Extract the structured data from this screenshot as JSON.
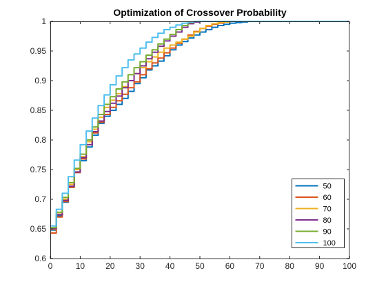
{
  "chart_data": {
    "type": "line",
    "title": "Optimization of Crossover Probability",
    "xlabel": "",
    "ylabel": "",
    "xlim": [
      0,
      100
    ],
    "ylim": [
      0.6,
      1
    ],
    "xticks": [
      "0",
      "10",
      "20",
      "30",
      "40",
      "50",
      "60",
      "70",
      "80",
      "90",
      "100"
    ],
    "yticks": [
      "0.6",
      "0.65",
      "0.7",
      "0.75",
      "0.8",
      "0.85",
      "0.9",
      "0.95",
      "1"
    ],
    "grid": false,
    "legend_position": "bottom-right",
    "series": [
      {
        "name": "50",
        "color": "#0072BD",
        "x": [
          0,
          2,
          4,
          6,
          8,
          10,
          12,
          14,
          16,
          18,
          20,
          22,
          24,
          26,
          28,
          30,
          32,
          34,
          36,
          38,
          40,
          42,
          44,
          46,
          48,
          50,
          52,
          54,
          56,
          58,
          60,
          62,
          64,
          66,
          68,
          70,
          100
        ],
        "y": [
          0.648,
          0.672,
          0.695,
          0.72,
          0.745,
          0.765,
          0.788,
          0.808,
          0.828,
          0.84,
          0.85,
          0.86,
          0.87,
          0.882,
          0.895,
          0.905,
          0.918,
          0.925,
          0.933,
          0.942,
          0.952,
          0.96,
          0.966,
          0.972,
          0.977,
          0.982,
          0.986,
          0.99,
          0.993,
          0.995,
          0.997,
          0.998,
          0.999,
          1,
          1,
          1,
          1
        ]
      },
      {
        "name": "60",
        "color": "#D95319",
        "x": [
          0,
          2,
          4,
          6,
          8,
          10,
          12,
          14,
          16,
          18,
          20,
          22,
          24,
          26,
          28,
          30,
          32,
          34,
          36,
          38,
          40,
          42,
          44,
          46,
          48,
          50,
          52,
          54,
          56,
          58,
          60,
          62,
          100
        ],
        "y": [
          0.643,
          0.67,
          0.696,
          0.72,
          0.745,
          0.768,
          0.792,
          0.812,
          0.83,
          0.843,
          0.855,
          0.866,
          0.877,
          0.888,
          0.898,
          0.91,
          0.92,
          0.93,
          0.938,
          0.947,
          0.955,
          0.963,
          0.97,
          0.977,
          0.983,
          0.988,
          0.992,
          0.995,
          0.997,
          0.999,
          1,
          1,
          1
        ]
      },
      {
        "name": "70",
        "color": "#EDB120",
        "x": [
          0,
          2,
          4,
          6,
          8,
          10,
          12,
          14,
          16,
          18,
          20,
          22,
          24,
          26,
          28,
          30,
          32,
          34,
          36,
          38,
          40,
          42,
          44,
          46,
          48,
          50,
          52,
          54,
          56,
          58,
          60,
          100
        ],
        "y": [
          0.649,
          0.675,
          0.7,
          0.725,
          0.75,
          0.772,
          0.797,
          0.818,
          0.838,
          0.855,
          0.867,
          0.878,
          0.89,
          0.9,
          0.912,
          0.922,
          0.932,
          0.94,
          0.948,
          0.955,
          0.96,
          0.965,
          0.97,
          0.975,
          0.982,
          0.988,
          0.993,
          0.996,
          0.998,
          0.999,
          1,
          1
        ]
      },
      {
        "name": "80",
        "color": "#7E2F8E",
        "x": [
          0,
          2,
          4,
          6,
          8,
          10,
          12,
          14,
          16,
          18,
          20,
          22,
          24,
          26,
          28,
          30,
          32,
          34,
          36,
          38,
          40,
          42,
          44,
          46,
          48,
          50,
          52,
          54,
          56,
          100
        ],
        "y": [
          0.65,
          0.674,
          0.698,
          0.722,
          0.746,
          0.77,
          0.792,
          0.814,
          0.832,
          0.848,
          0.862,
          0.874,
          0.888,
          0.9,
          0.912,
          0.925,
          0.937,
          0.948,
          0.958,
          0.967,
          0.975,
          0.982,
          0.99,
          0.996,
          0.999,
          1,
          1,
          1,
          1,
          1
        ]
      },
      {
        "name": "90",
        "color": "#77AC30",
        "x": [
          0,
          2,
          4,
          6,
          8,
          10,
          12,
          14,
          16,
          18,
          20,
          22,
          24,
          26,
          28,
          30,
          32,
          34,
          36,
          38,
          40,
          42,
          44,
          46,
          48,
          50,
          100
        ],
        "y": [
          0.652,
          0.678,
          0.703,
          0.728,
          0.752,
          0.776,
          0.8,
          0.822,
          0.843,
          0.86,
          0.873,
          0.886,
          0.898,
          0.91,
          0.922,
          0.932,
          0.943,
          0.952,
          0.962,
          0.97,
          0.978,
          0.986,
          0.993,
          0.998,
          1,
          1,
          1
        ]
      },
      {
        "name": "100",
        "color": "#4DBEEE",
        "x": [
          0,
          2,
          4,
          6,
          8,
          10,
          12,
          14,
          16,
          18,
          20,
          22,
          24,
          26,
          28,
          30,
          32,
          34,
          36,
          38,
          40,
          42,
          44,
          46,
          48,
          50,
          100
        ],
        "y": [
          0.655,
          0.683,
          0.71,
          0.738,
          0.766,
          0.792,
          0.815,
          0.837,
          0.858,
          0.876,
          0.893,
          0.908,
          0.922,
          0.935,
          0.945,
          0.955,
          0.965,
          0.973,
          0.98,
          0.986,
          0.99,
          0.994,
          0.997,
          0.999,
          1,
          1,
          1
        ]
      }
    ]
  }
}
